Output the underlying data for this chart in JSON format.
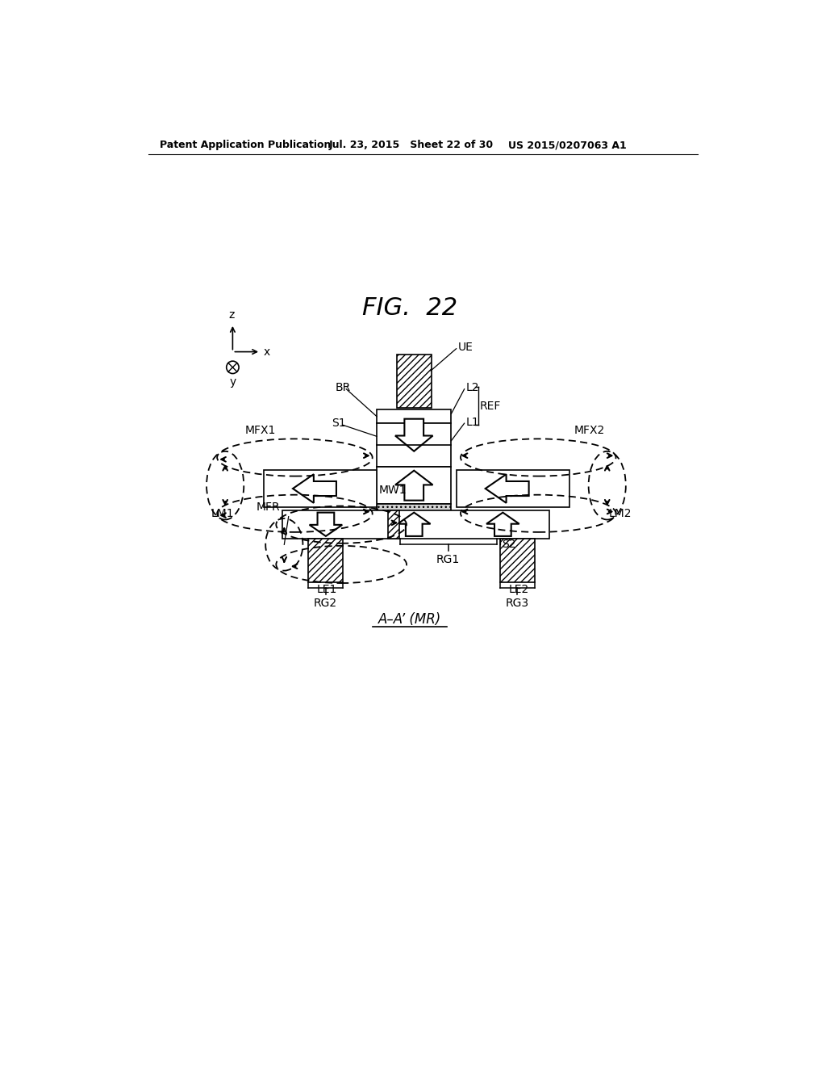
{
  "title": "FIG.  22",
  "header_left": "Patent Application Publication",
  "header_mid": "Jul. 23, 2015   Sheet 22 of 30",
  "header_right": "US 2015/0207063 A1",
  "footer_label": "A–A’ (MR)",
  "bg_color": "#ffffff",
  "line_color": "#000000"
}
